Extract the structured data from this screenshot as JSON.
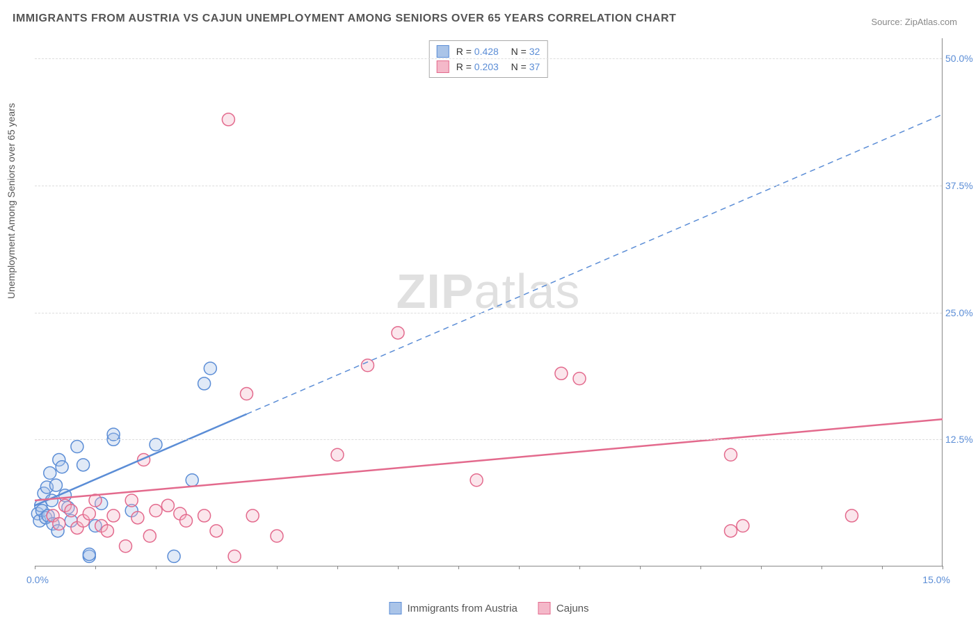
{
  "title": "IMMIGRANTS FROM AUSTRIA VS CAJUN UNEMPLOYMENT AMONG SENIORS OVER 65 YEARS CORRELATION CHART",
  "source_label": "Source: ZipAtlas.com",
  "watermark": {
    "bold": "ZIP",
    "light": "atlas"
  },
  "ylabel": "Unemployment Among Seniors over 65 years",
  "chart": {
    "type": "scatter",
    "xlim": [
      0,
      15
    ],
    "ylim": [
      0,
      52
    ],
    "x_tick_labels": {
      "min": "0.0%",
      "max": "15.0%"
    },
    "y_ticks": [
      12.5,
      25.0,
      37.5,
      50.0
    ],
    "y_tick_labels": [
      "12.5%",
      "25.0%",
      "37.5%",
      "50.0%"
    ],
    "x_minor_ticks": [
      0,
      1,
      2,
      3,
      4,
      5,
      6,
      7,
      8,
      9,
      10,
      11,
      12,
      13,
      14,
      15
    ],
    "background_color": "#ffffff",
    "grid_color": "#dddddd",
    "label_color": "#5b8dd6",
    "marker_radius": 9,
    "marker_stroke_width": 1.5,
    "fill_opacity": 0.35,
    "series": [
      {
        "name": "Immigrants from Austria",
        "color_stroke": "#5b8dd6",
        "color_fill": "#aac4e8",
        "R": "0.428",
        "N": "32",
        "trend": {
          "x1": 0,
          "y1": 6.0,
          "x2": 3.5,
          "y2": 15.0,
          "dash_x2": 15.0,
          "dash_y2": 44.5
        },
        "points": [
          [
            0.05,
            5.2
          ],
          [
            0.08,
            4.5
          ],
          [
            0.1,
            6.0
          ],
          [
            0.12,
            5.5
          ],
          [
            0.15,
            7.2
          ],
          [
            0.18,
            4.8
          ],
          [
            0.2,
            7.8
          ],
          [
            0.22,
            5.0
          ],
          [
            0.25,
            9.2
          ],
          [
            0.28,
            6.5
          ],
          [
            0.3,
            4.2
          ],
          [
            0.35,
            8.0
          ],
          [
            0.38,
            3.5
          ],
          [
            0.4,
            10.5
          ],
          [
            0.45,
            9.8
          ],
          [
            0.5,
            7.0
          ],
          [
            0.55,
            5.8
          ],
          [
            0.6,
            4.5
          ],
          [
            0.7,
            11.8
          ],
          [
            0.8,
            10.0
          ],
          [
            0.9,
            1.0
          ],
          [
            0.9,
            1.2
          ],
          [
            1.0,
            4.0
          ],
          [
            1.1,
            6.2
          ],
          [
            1.3,
            12.5
          ],
          [
            1.3,
            13.0
          ],
          [
            1.6,
            5.5
          ],
          [
            2.0,
            12.0
          ],
          [
            2.3,
            1.0
          ],
          [
            2.6,
            8.5
          ],
          [
            2.8,
            18.0
          ],
          [
            2.9,
            19.5
          ]
        ]
      },
      {
        "name": "Cajuns",
        "color_stroke": "#e36a8d",
        "color_fill": "#f4b8c9",
        "R": "0.203",
        "N": "37",
        "trend": {
          "x1": 0,
          "y1": 6.5,
          "x2": 15.0,
          "y2": 14.5
        },
        "points": [
          [
            0.3,
            5.0
          ],
          [
            0.4,
            4.2
          ],
          [
            0.5,
            6.0
          ],
          [
            0.6,
            5.5
          ],
          [
            0.7,
            3.8
          ],
          [
            0.8,
            4.5
          ],
          [
            0.9,
            5.2
          ],
          [
            1.0,
            6.5
          ],
          [
            1.1,
            4.0
          ],
          [
            1.2,
            3.5
          ],
          [
            1.3,
            5.0
          ],
          [
            1.5,
            2.0
          ],
          [
            1.6,
            6.5
          ],
          [
            1.7,
            4.8
          ],
          [
            1.8,
            10.5
          ],
          [
            1.9,
            3.0
          ],
          [
            2.0,
            5.5
          ],
          [
            2.2,
            6.0
          ],
          [
            2.4,
            5.2
          ],
          [
            2.5,
            4.5
          ],
          [
            2.8,
            5.0
          ],
          [
            3.0,
            3.5
          ],
          [
            3.2,
            44.0
          ],
          [
            3.3,
            1.0
          ],
          [
            3.5,
            17.0
          ],
          [
            3.6,
            5.0
          ],
          [
            4.0,
            3.0
          ],
          [
            5.0,
            11.0
          ],
          [
            5.5,
            19.8
          ],
          [
            6.0,
            23.0
          ],
          [
            7.3,
            8.5
          ],
          [
            8.7,
            19.0
          ],
          [
            9.0,
            18.5
          ],
          [
            11.5,
            11.0
          ],
          [
            11.5,
            3.5
          ],
          [
            11.7,
            4.0
          ],
          [
            13.5,
            5.0
          ]
        ]
      }
    ]
  },
  "legend_bottom": [
    {
      "label": "Immigrants from Austria",
      "fill": "#aac4e8",
      "stroke": "#5b8dd6"
    },
    {
      "label": "Cajuns",
      "fill": "#f4b8c9",
      "stroke": "#e36a8d"
    }
  ]
}
